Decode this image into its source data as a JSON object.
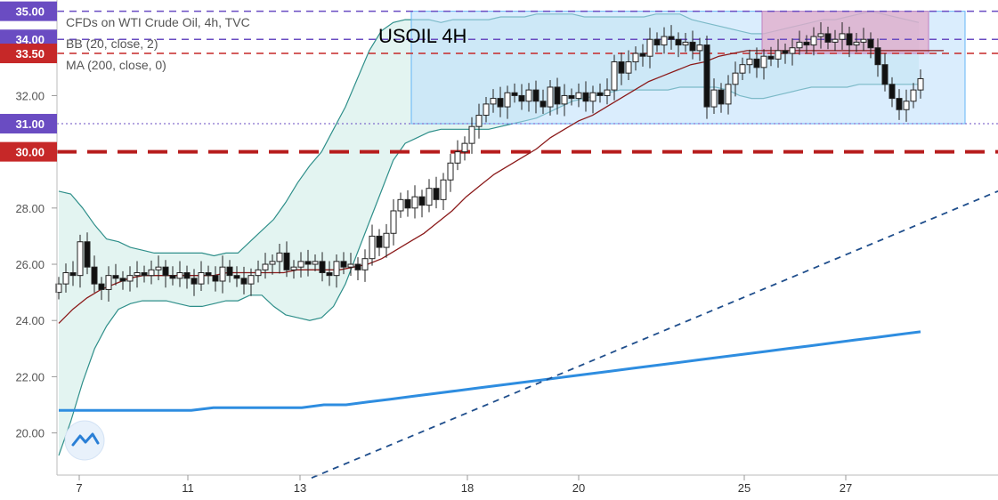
{
  "chart_data": {
    "type": "candlestick",
    "title": "USOIL 4H",
    "legend": [
      "CFDs on WTI Crude Oil, 4h, TVC",
      "BB (20, close, 2)",
      "MA (200, close, 0)"
    ],
    "y_axis": {
      "ticks": [
        "32.00",
        "28.00",
        "26.00",
        "24.00",
        "22.00",
        "20.00"
      ],
      "tick_values": [
        32,
        28,
        26,
        24,
        22,
        20
      ],
      "range": [
        18.5,
        35.4
      ]
    },
    "x_axis": {
      "ticks": [
        "7",
        "11",
        "13",
        "18",
        "20",
        "25",
        "27"
      ]
    },
    "price_badges": [
      {
        "label": "35.00",
        "value": 35.0,
        "color": "#6a4cc2"
      },
      {
        "label": "34.00",
        "value": 34.0,
        "color": "#6a4cc2"
      },
      {
        "label": "33.50",
        "value": 33.5,
        "color": "#c62828"
      },
      {
        "label": "31.00",
        "value": 31.0,
        "color": "#6a4cc2"
      },
      {
        "label": "30.00",
        "value": 30.0,
        "color": "#c62828"
      }
    ],
    "levels": [
      {
        "value": 35.0,
        "color": "#6a4cc2",
        "style": "dashed"
      },
      {
        "value": 34.0,
        "color": "#6a4cc2",
        "style": "dashed"
      },
      {
        "value": 33.5,
        "color": "#c62828",
        "style": "dashed"
      },
      {
        "value": 31.0,
        "color": "#6a4cc2",
        "style": "dotted"
      },
      {
        "value": 30.0,
        "color": "#b71c1c",
        "style": "thick-dashed"
      }
    ],
    "candles_close": [
      25.3,
      25.7,
      25.6,
      26.8,
      25.9,
      25.3,
      25.1,
      25.6,
      25.5,
      25.4,
      25.6,
      25.7,
      25.6,
      25.8,
      25.9,
      25.6,
      25.5,
      25.7,
      25.5,
      25.3,
      25.7,
      25.6,
      25.4,
      25.9,
      25.6,
      25.5,
      25.3,
      25.6,
      25.8,
      26.0,
      26.1,
      26.4,
      25.8,
      25.9,
      26.1,
      26.0,
      26.1,
      25.7,
      25.6,
      26.1,
      25.9,
      26.0,
      25.8,
      26.2,
      27.0,
      26.6,
      27.1,
      27.9,
      28.3,
      28.0,
      28.4,
      28.1,
      28.7,
      28.3,
      29.0,
      29.6,
      30.0,
      30.3,
      30.9,
      31.3,
      31.7,
      31.9,
      31.6,
      32.1,
      32.0,
      31.8,
      32.2,
      31.8,
      31.6,
      32.3,
      31.7,
      32.0,
      31.9,
      32.1,
      31.8,
      32.1,
      32.0,
      32.2,
      33.2,
      32.8,
      33.2,
      33.5,
      33.4,
      34.0,
      33.8,
      34.1,
      34.0,
      33.8,
      33.9,
      33.6,
      33.8,
      31.6,
      32.2,
      31.7,
      32.4,
      32.8,
      33.1,
      33.3,
      33.0,
      33.4,
      33.3,
      33.6,
      33.5,
      33.7,
      33.9,
      33.8,
      34.1,
      34.2,
      33.9,
      34.0,
      34.2,
      33.8,
      33.9,
      34.0,
      33.7,
      33.1,
      32.4,
      31.9,
      31.5,
      31.8,
      32.2,
      32.6
    ],
    "bollinger": {
      "upper": [
        28.6,
        28.5,
        28.0,
        27.4,
        26.9,
        26.8,
        26.6,
        26.5,
        26.4,
        26.4,
        26.4,
        26.4,
        26.4,
        26.3,
        26.4,
        26.4,
        26.8,
        27.2,
        27.6,
        28.2,
        28.9,
        29.5,
        30.0,
        30.8,
        31.6,
        32.6,
        33.6,
        34.3,
        34.6,
        34.7,
        34.7,
        34.7,
        34.6,
        34.7,
        34.7,
        34.7,
        34.7,
        34.8,
        34.8,
        34.8,
        34.9,
        34.9,
        34.9,
        34.9,
        34.8,
        34.8,
        34.8,
        34.8,
        34.8,
        34.8,
        34.9,
        34.9,
        34.9,
        34.7,
        34.6,
        34.5,
        34.4,
        34.3,
        34.2,
        34.2,
        34.3,
        34.4,
        34.5,
        34.6,
        34.7,
        34.7,
        34.8,
        34.9,
        35.0,
        34.9,
        34.8,
        34.7,
        34.6
      ],
      "lower": [
        19.2,
        20.4,
        21.8,
        23.0,
        23.8,
        24.4,
        24.6,
        24.7,
        24.7,
        24.7,
        24.6,
        24.5,
        24.5,
        24.6,
        24.7,
        24.7,
        24.9,
        24.9,
        24.5,
        24.2,
        24.1,
        24.0,
        24.1,
        24.5,
        25.3,
        26.4,
        27.5,
        28.6,
        29.7,
        30.3,
        30.5,
        30.7,
        30.8,
        30.8,
        30.8,
        30.8,
        30.8,
        30.9,
        31.0,
        31.1,
        31.2,
        31.4,
        31.6,
        31.8,
        31.9,
        32.0,
        32.1,
        32.2,
        32.2,
        32.2,
        32.2,
        32.2,
        32.3,
        32.3,
        32.3,
        32.3,
        32.2,
        32.0,
        31.9,
        31.9,
        32.0,
        32.1,
        32.2,
        32.3,
        32.3,
        32.3,
        32.3,
        32.4,
        32.4,
        32.4,
        32.4,
        32.4,
        32.4
      ]
    },
    "ma200": [
      23.9,
      24.4,
      24.8,
      25.1,
      25.3,
      25.5,
      25.6,
      25.6,
      25.6,
      25.6,
      25.6,
      25.6,
      25.7,
      25.7,
      25.7,
      25.7,
      25.7,
      25.8,
      25.8,
      25.8,
      25.8,
      25.9,
      26.0,
      26.2,
      26.5,
      26.8,
      27.1,
      27.5,
      27.9,
      28.4,
      28.8,
      29.2,
      29.5,
      29.8,
      30.1,
      30.5,
      30.8,
      31.1,
      31.3,
      31.6,
      31.9,
      32.2,
      32.5,
      32.7,
      32.9,
      33.1,
      33.2,
      33.4,
      33.5,
      33.6,
      33.6,
      33.6,
      33.6,
      33.6,
      33.6,
      33.6,
      33.6,
      33.6,
      33.6,
      33.6,
      33.6,
      33.6,
      33.6,
      33.6
    ],
    "ma_long": [
      20.8,
      20.8,
      20.8,
      20.8,
      20.8,
      20.8,
      20.8,
      20.9,
      20.9,
      20.9,
      20.9,
      20.9,
      21.0,
      21.0,
      21.1,
      21.2,
      21.3,
      21.4,
      21.5,
      21.6,
      21.7,
      21.8,
      21.9,
      22.0,
      22.1,
      22.2,
      22.3,
      22.4,
      22.5,
      22.6,
      22.7,
      22.8,
      22.9,
      23.0,
      23.1,
      23.2,
      23.3,
      23.4,
      23.5,
      23.6
    ],
    "trendline": {
      "from": [
        0.28,
        18.4
      ],
      "to": [
        1.0,
        28.6
      ]
    },
    "range_box": {
      "top": 35.0,
      "bottom": 31.0,
      "color": "#bbdefb"
    },
    "resistance_box": {
      "top": 35.0,
      "bottom": 33.5,
      "color": "#e1a9c8"
    }
  }
}
